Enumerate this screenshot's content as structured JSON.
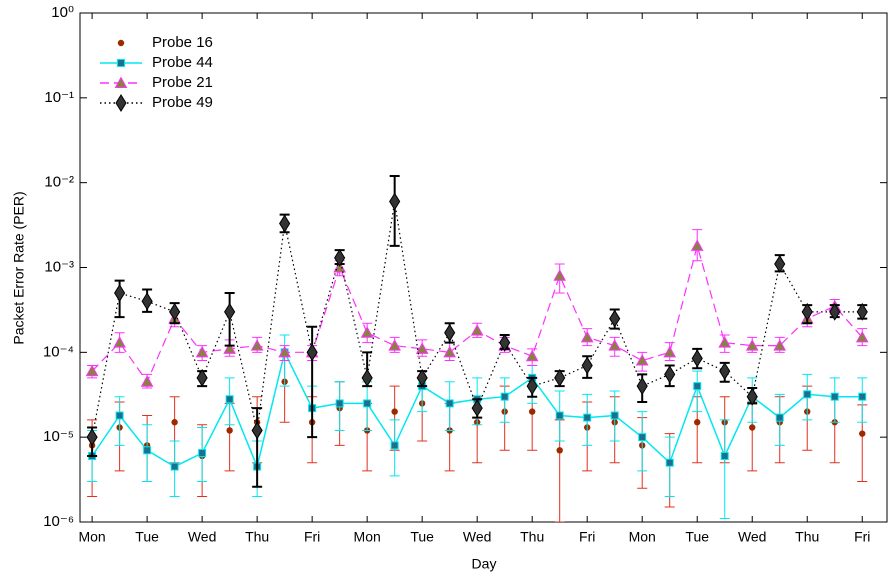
{
  "chart_data": {
    "type": "scatter",
    "xlabel": "Day",
    "ylabel": "Packet Error Rate (PER)",
    "log_y": true,
    "legend": "upper left",
    "xlim": [
      -0.22,
      14.45
    ],
    "ylim": [
      1e-06,
      1
    ],
    "xticks": [
      {
        "value": 0,
        "label": "Mon"
      },
      {
        "value": 1,
        "label": "Tue"
      },
      {
        "value": 2,
        "label": "Wed"
      },
      {
        "value": 3,
        "label": "Thu"
      },
      {
        "value": 4,
        "label": "Fri"
      },
      {
        "value": 5,
        "label": "Mon"
      },
      {
        "value": 6,
        "label": "Tue"
      },
      {
        "value": 7,
        "label": "Wed"
      },
      {
        "value": 8,
        "label": "Thu"
      },
      {
        "value": 9,
        "label": "Fri"
      },
      {
        "value": 10,
        "label": "Mon"
      },
      {
        "value": 11,
        "label": "Tue"
      },
      {
        "value": 12,
        "label": "Wed"
      },
      {
        "value": 13,
        "label": "Thu"
      },
      {
        "value": 14,
        "label": "Fri"
      }
    ],
    "yticks": [
      {
        "value": 1e-06,
        "label": "10⁻⁶"
      },
      {
        "value": 1e-05,
        "label": "10⁻⁵"
      },
      {
        "value": 0.0001,
        "label": "10⁻⁴"
      },
      {
        "value": 0.001,
        "label": "10⁻³"
      },
      {
        "value": 0.01,
        "label": "10⁻²"
      },
      {
        "value": 0.1,
        "label": "10⁻¹"
      },
      {
        "value": 1,
        "label": "10⁰"
      }
    ],
    "x": [
      0,
      0.5,
      1,
      1.5,
      2,
      2.5,
      3,
      3.5,
      4,
      4.5,
      5,
      5.5,
      6,
      6.5,
      7,
      7.5,
      8,
      8.5,
      9,
      9.5,
      10,
      10.5,
      11,
      11.5,
      12,
      12.5,
      13,
      13.5,
      14
    ],
    "series": [
      {
        "name": "Probe 16",
        "color": "#9a2a00",
        "error_color": "#e0301e",
        "line": "none",
        "marker": "circle",
        "values": [
          8e-06,
          1.3e-05,
          8e-06,
          1.5e-05,
          6e-06,
          1.2e-05,
          1.5e-05,
          4.5e-05,
          1.5e-05,
          2.2e-05,
          1.2e-05,
          2e-05,
          2.5e-05,
          1.2e-05,
          1.5e-05,
          2e-05,
          2e-05,
          7e-06,
          1.3e-05,
          1.5e-05,
          8e-06,
          5e-06,
          1.5e-05,
          1.5e-05,
          1.3e-05,
          1.5e-05,
          2e-05,
          1.5e-05,
          1.1e-05
        ],
        "lower": [
          2e-06,
          4e-06,
          3e-06,
          5e-06,
          2e-06,
          4e-06,
          5e-06,
          1.5e-05,
          5e-06,
          8e-06,
          4e-06,
          7e-06,
          9e-06,
          4e-06,
          5e-06,
          7e-06,
          7e-06,
          1e-06,
          4e-06,
          5e-06,
          2.5e-06,
          1.5e-06,
          5e-06,
          5e-06,
          4e-06,
          5e-06,
          7e-06,
          5e-06,
          3e-06
        ],
        "upper": [
          1.6e-05,
          2.6e-05,
          1.8e-05,
          3e-05,
          1.4e-05,
          2.5e-05,
          3e-05,
          8e-05,
          3e-05,
          4.5e-05,
          2.5e-05,
          4e-05,
          5e-05,
          2.5e-05,
          3e-05,
          4e-05,
          4e-05,
          1.6e-05,
          2.6e-05,
          3e-05,
          1.7e-05,
          1.1e-05,
          3e-05,
          3e-05,
          2.6e-05,
          3e-05,
          4e-05,
          3e-05,
          2.4e-05
        ]
      },
      {
        "name": "Probe 44",
        "color": "#00e8f0",
        "marker_color": "#1d6f8e",
        "line": "solid",
        "marker": "square",
        "values": [
          6e-06,
          1.8e-05,
          7e-06,
          4.5e-06,
          6.5e-06,
          2.8e-05,
          4.5e-06,
          0.0001,
          2.2e-05,
          2.5e-05,
          2.5e-05,
          8e-06,
          4e-05,
          2.5e-05,
          2.8e-05,
          3e-05,
          5e-05,
          1.8e-05,
          1.7e-05,
          1.8e-05,
          1e-05,
          5e-06,
          4e-05,
          6e-06,
          3e-05,
          1.7e-05,
          3.2e-05,
          3e-05,
          3e-05
        ],
        "lower": [
          3e-06,
          8e-06,
          3e-06,
          2e-06,
          3e-06,
          1.4e-05,
          2e-06,
          4e-05,
          1e-05,
          1.2e-05,
          1.2e-05,
          3.5e-06,
          2e-05,
          1.2e-05,
          1.4e-05,
          1.5e-05,
          2.5e-05,
          9e-06,
          8e-06,
          9e-06,
          4e-06,
          2e-06,
          2e-05,
          1.1e-06,
          1.5e-05,
          8e-06,
          1.6e-05,
          1.5e-05,
          1.5e-05
        ],
        "upper": [
          1.2e-05,
          3e-05,
          1.4e-05,
          9e-06,
          1.3e-05,
          5e-05,
          9e-06,
          0.00016,
          4e-05,
          4.5e-05,
          4.5e-05,
          1.6e-05,
          6e-05,
          4.5e-05,
          5e-05,
          5e-05,
          7e-05,
          3.5e-05,
          3.2e-05,
          3.5e-05,
          2e-05,
          1e-05,
          6e-05,
          1.6e-05,
          5e-05,
          3.2e-05,
          5.5e-05,
          5e-05,
          5e-05
        ]
      },
      {
        "name": "Probe 21",
        "color": "#ff30ff",
        "marker_color": "#8a8040",
        "line": "dashed",
        "marker": "triangle",
        "values": [
          6e-05,
          0.00013,
          4.5e-05,
          0.00025,
          0.0001,
          0.00011,
          0.00012,
          0.0001,
          0.0001,
          0.001,
          0.00017,
          0.00012,
          0.00011,
          0.0001,
          0.00018,
          0.00012,
          9e-05,
          0.0008,
          0.00015,
          0.00012,
          8e-05,
          0.0001,
          0.0018,
          0.00013,
          0.00012,
          0.00012,
          0.00025,
          0.00035,
          0.00015
        ],
        "lower": [
          5e-05,
          0.0001,
          3.8e-05,
          0.0002,
          8e-05,
          9e-05,
          0.0001,
          8e-05,
          8e-05,
          0.0008,
          0.00013,
          0.0001,
          9e-05,
          8e-05,
          0.00015,
          0.0001,
          7e-05,
          0.0005,
          0.00012,
          9e-05,
          6e-05,
          8e-05,
          0.0012,
          0.0001,
          0.0001,
          0.0001,
          0.0002,
          0.00028,
          0.00012
        ],
        "upper": [
          7e-05,
          0.00017,
          5.5e-05,
          0.0003,
          0.00012,
          0.00014,
          0.00015,
          0.00012,
          0.00012,
          0.0012,
          0.00022,
          0.00015,
          0.00014,
          0.00013,
          0.00022,
          0.00015,
          0.00011,
          0.0011,
          0.00019,
          0.00015,
          0.0001,
          0.00013,
          0.0028,
          0.00016,
          0.00015,
          0.00015,
          0.0003,
          0.00042,
          0.00019
        ]
      },
      {
        "name": "Probe 49",
        "color": "#000000",
        "marker_color": "#333333",
        "line": "dotted",
        "marker": "diamond",
        "values": [
          1e-05,
          0.0005,
          0.0004,
          0.0003,
          5e-05,
          0.0003,
          1.2e-05,
          0.0033,
          0.0001,
          0.0013,
          5e-05,
          0.006,
          5e-05,
          0.00017,
          2.2e-05,
          0.00013,
          4e-05,
          5e-05,
          7e-05,
          0.00025,
          4e-05,
          5.5e-05,
          8.5e-05,
          6e-05,
          3e-05,
          0.0011,
          0.0003,
          0.0003,
          0.0003
        ],
        "lower": [
          6e-06,
          0.00026,
          0.0003,
          0.00022,
          4e-05,
          0.00012,
          2.6e-06,
          0.0026,
          1e-05,
          0.0011,
          4e-05,
          0.0018,
          4e-05,
          0.00013,
          1.7e-05,
          0.00011,
          3e-05,
          4e-05,
          5e-05,
          0.00019,
          2.6e-05,
          4e-05,
          6.5e-05,
          4.5e-05,
          2.5e-05,
          0.0009,
          0.00022,
          0.00026,
          0.00025
        ],
        "upper": [
          1.3e-05,
          0.0007,
          0.00055,
          0.00038,
          6e-05,
          0.0005,
          2.2e-05,
          0.0042,
          0.0002,
          0.0016,
          0.0001,
          0.012,
          6e-05,
          0.00022,
          2.8e-05,
          0.00016,
          5e-05,
          6e-05,
          9e-05,
          0.00032,
          5.5e-05,
          7e-05,
          0.00011,
          7.5e-05,
          3.8e-05,
          0.0014,
          0.00036,
          0.00036,
          0.00036
        ]
      }
    ]
  }
}
